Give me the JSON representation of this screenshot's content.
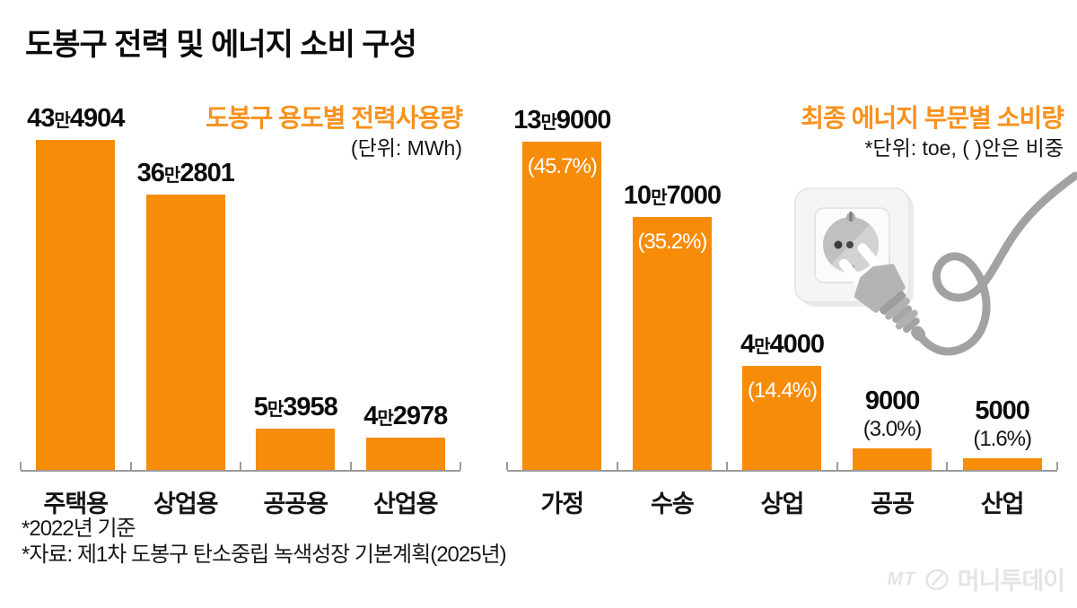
{
  "page": {
    "title": "도봉구 전력 및 에너지 소비 구성"
  },
  "colors": {
    "bar": "#F78C09",
    "accent": "#F7921E",
    "axis": "#9B9B9B",
    "pct_inside": "#FFFFFF",
    "logo": "#E4E4E4"
  },
  "chart_data": [
    {
      "type": "bar",
      "title": "도봉구 용도별 전력사용량",
      "subtitle": "(단위: MWh)",
      "unit": "MWh",
      "categories": [
        "주택용",
        "상업용",
        "공공용",
        "산업용"
      ],
      "values": [
        434904,
        362801,
        53958,
        42978
      ],
      "value_labels": [
        "43만4904",
        "36만2801",
        "5만3958",
        "4만2978"
      ],
      "ylim": [
        0,
        434904
      ],
      "grid": false,
      "legend": false
    },
    {
      "type": "bar",
      "title": "최종 에너지 부문별 소비량",
      "subtitle": "*단위: toe, ( )안은 비중",
      "unit": "toe",
      "categories": [
        "가정",
        "수송",
        "상업",
        "공공",
        "산업"
      ],
      "values": [
        139000,
        107000,
        44000,
        9000,
        5000
      ],
      "value_labels": [
        "13만9000",
        "10만7000",
        "4만4000",
        "9000",
        "5000"
      ],
      "pct_labels": [
        "(45.7%)",
        "(35.2%)",
        "(14.4%)",
        "(3.0%)",
        "(1.6%)"
      ],
      "pct_placement": [
        "inside",
        "inside",
        "inside",
        "above",
        "above"
      ],
      "ylim": [
        0,
        139000
      ],
      "grid": false,
      "legend": false
    }
  ],
  "footnotes": [
    "*2022년 기준",
    "*자료: 제1차 도봉구 탄소중립 녹색성장 기본계획(2025년)"
  ],
  "logo": {
    "mt": "MT",
    "name": "머니투데이"
  }
}
